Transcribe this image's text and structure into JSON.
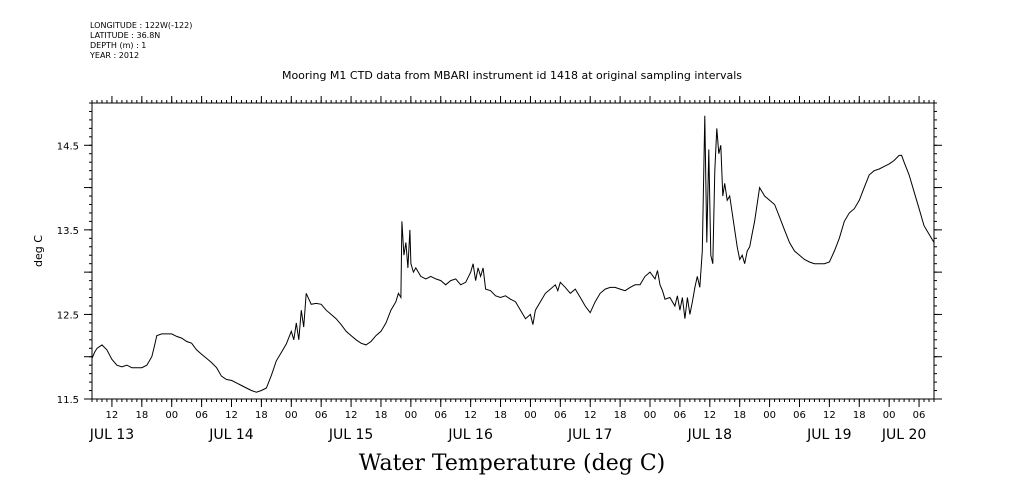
{
  "meta_lines": [
    "LONGITUDE : 122W(-122)",
    "LATITUDE : 36.8N",
    "DEPTH (m) : 1",
    "YEAR : 2012"
  ],
  "chart_data": {
    "type": "line",
    "title": "Mooring M1 CTD data from MBARI instrument id 1418 at original sampling intervals",
    "xlabel": "Water Temperature (deg C)",
    "ylabel": "deg C",
    "x_units": "hours since 2012-07-13 00:00",
    "xlim": [
      8,
      177
    ],
    "ylim": [
      11.5,
      15.0
    ],
    "y_ticks": [
      {
        "value": 11.5,
        "label": "11.5"
      },
      {
        "value": 12.0,
        "label": ""
      },
      {
        "value": 12.5,
        "label": "12.5"
      },
      {
        "value": 13.0,
        "label": ""
      },
      {
        "value": 13.5,
        "label": "13.5"
      },
      {
        "value": 14.0,
        "label": ""
      },
      {
        "value": 14.5,
        "label": "14.5"
      }
    ],
    "hour_ticks": [
      {
        "t": 12,
        "label": "12"
      },
      {
        "t": 18,
        "label": "18"
      },
      {
        "t": 24,
        "label": "00"
      },
      {
        "t": 30,
        "label": "06"
      },
      {
        "t": 36,
        "label": "12"
      },
      {
        "t": 42,
        "label": "18"
      },
      {
        "t": 48,
        "label": "00"
      },
      {
        "t": 54,
        "label": "06"
      },
      {
        "t": 60,
        "label": "12"
      },
      {
        "t": 66,
        "label": "18"
      },
      {
        "t": 72,
        "label": "00"
      },
      {
        "t": 78,
        "label": "06"
      },
      {
        "t": 84,
        "label": "12"
      },
      {
        "t": 90,
        "label": "18"
      },
      {
        "t": 96,
        "label": "00"
      },
      {
        "t": 102,
        "label": "06"
      },
      {
        "t": 108,
        "label": "12"
      },
      {
        "t": 114,
        "label": "18"
      },
      {
        "t": 120,
        "label": "00"
      },
      {
        "t": 126,
        "label": "06"
      },
      {
        "t": 132,
        "label": "12"
      },
      {
        "t": 138,
        "label": "18"
      },
      {
        "t": 144,
        "label": "00"
      },
      {
        "t": 150,
        "label": "06"
      },
      {
        "t": 156,
        "label": "12"
      },
      {
        "t": 162,
        "label": "18"
      },
      {
        "t": 168,
        "label": "00"
      },
      {
        "t": 174,
        "label": "06"
      }
    ],
    "day_labels": [
      {
        "t": 12,
        "label": "JUL 13"
      },
      {
        "t": 36,
        "label": "JUL 14"
      },
      {
        "t": 60,
        "label": "JUL 15"
      },
      {
        "t": 84,
        "label": "JUL 16"
      },
      {
        "t": 108,
        "label": "JUL 17"
      },
      {
        "t": 132,
        "label": "JUL 18"
      },
      {
        "t": 156,
        "label": "JUL 19"
      },
      {
        "t": 171,
        "label": "JUL 20"
      }
    ],
    "series": [
      {
        "points": [
          [
            8,
            11.98
          ],
          [
            8.5,
            12.05
          ],
          [
            9,
            12.1
          ],
          [
            10,
            12.14
          ],
          [
            11,
            12.08
          ],
          [
            12,
            11.97
          ],
          [
            13,
            11.9
          ],
          [
            14,
            11.88
          ],
          [
            15,
            11.9
          ],
          [
            16,
            11.87
          ],
          [
            17,
            11.87
          ],
          [
            18,
            11.87
          ],
          [
            19,
            11.9
          ],
          [
            20,
            12.0
          ],
          [
            20.5,
            12.12
          ],
          [
            21,
            12.25
          ],
          [
            22,
            12.27
          ],
          [
            23,
            12.27
          ],
          [
            24,
            12.27
          ],
          [
            25,
            12.24
          ],
          [
            26,
            12.22
          ],
          [
            27,
            12.18
          ],
          [
            28,
            12.16
          ],
          [
            29,
            12.08
          ],
          [
            30,
            12.03
          ],
          [
            31,
            11.98
          ],
          [
            32,
            11.93
          ],
          [
            33,
            11.87
          ],
          [
            34,
            11.77
          ],
          [
            35,
            11.73
          ],
          [
            36,
            11.72
          ],
          [
            37,
            11.69
          ],
          [
            38,
            11.66
          ],
          [
            39,
            11.63
          ],
          [
            40,
            11.6
          ],
          [
            41,
            11.58
          ],
          [
            42,
            11.6
          ],
          [
            43,
            11.63
          ],
          [
            44,
            11.78
          ],
          [
            45,
            11.95
          ],
          [
            46,
            12.05
          ],
          [
            47,
            12.15
          ],
          [
            48,
            12.3
          ],
          [
            48.5,
            12.2
          ],
          [
            49,
            12.4
          ],
          [
            49.5,
            12.2
          ],
          [
            50,
            12.55
          ],
          [
            50.5,
            12.35
          ],
          [
            51,
            12.75
          ],
          [
            52,
            12.62
          ],
          [
            53,
            12.63
          ],
          [
            54,
            12.62
          ],
          [
            55,
            12.55
          ],
          [
            56,
            12.5
          ],
          [
            57,
            12.45
          ],
          [
            58,
            12.38
          ],
          [
            59,
            12.3
          ],
          [
            60,
            12.25
          ],
          [
            61,
            12.2
          ],
          [
            62,
            12.16
          ],
          [
            63,
            12.14
          ],
          [
            64,
            12.18
          ],
          [
            65,
            12.25
          ],
          [
            66,
            12.3
          ],
          [
            67,
            12.4
          ],
          [
            68,
            12.55
          ],
          [
            69,
            12.65
          ],
          [
            69.5,
            12.75
          ],
          [
            70,
            12.7
          ],
          [
            70.2,
            13.6
          ],
          [
            70.6,
            13.2
          ],
          [
            71,
            13.35
          ],
          [
            71.4,
            13.05
          ],
          [
            71.8,
            13.5
          ],
          [
            72,
            13.1
          ],
          [
            72.5,
            13.0
          ],
          [
            73,
            13.05
          ],
          [
            74,
            12.95
          ],
          [
            75,
            12.92
          ],
          [
            76,
            12.95
          ],
          [
            77,
            12.92
          ],
          [
            78,
            12.9
          ],
          [
            79,
            12.85
          ],
          [
            80,
            12.9
          ],
          [
            81,
            12.92
          ],
          [
            82,
            12.85
          ],
          [
            83,
            12.88
          ],
          [
            84,
            13.0
          ],
          [
            84.5,
            13.1
          ],
          [
            85,
            12.9
          ],
          [
            85.5,
            13.05
          ],
          [
            86,
            12.95
          ],
          [
            86.5,
            13.05
          ],
          [
            87,
            12.8
          ],
          [
            88,
            12.78
          ],
          [
            89,
            12.72
          ],
          [
            90,
            12.7
          ],
          [
            91,
            12.72
          ],
          [
            92,
            12.68
          ],
          [
            93,
            12.65
          ],
          [
            94,
            12.55
          ],
          [
            95,
            12.45
          ],
          [
            96,
            12.5
          ],
          [
            96.5,
            12.38
          ],
          [
            97,
            12.55
          ],
          [
            98,
            12.65
          ],
          [
            99,
            12.75
          ],
          [
            100,
            12.8
          ],
          [
            101,
            12.85
          ],
          [
            101.5,
            12.78
          ],
          [
            102,
            12.88
          ],
          [
            103,
            12.82
          ],
          [
            104,
            12.75
          ],
          [
            105,
            12.8
          ],
          [
            106,
            12.7
          ],
          [
            107,
            12.6
          ],
          [
            108,
            12.52
          ],
          [
            109,
            12.65
          ],
          [
            110,
            12.75
          ],
          [
            111,
            12.8
          ],
          [
            112,
            12.82
          ],
          [
            113,
            12.82
          ],
          [
            114,
            12.8
          ],
          [
            115,
            12.78
          ],
          [
            116,
            12.82
          ],
          [
            117,
            12.85
          ],
          [
            118,
            12.85
          ],
          [
            119,
            12.95
          ],
          [
            120,
            13.0
          ],
          [
            121,
            12.92
          ],
          [
            121.5,
            13.02
          ],
          [
            122,
            12.85
          ],
          [
            122.5,
            12.78
          ],
          [
            123,
            12.68
          ],
          [
            124,
            12.7
          ],
          [
            125,
            12.6
          ],
          [
            125.5,
            12.72
          ],
          [
            126,
            12.55
          ],
          [
            126.5,
            12.7
          ],
          [
            127,
            12.45
          ],
          [
            127.5,
            12.7
          ],
          [
            128,
            12.5
          ],
          [
            128.5,
            12.65
          ],
          [
            129,
            12.82
          ],
          [
            129.5,
            12.95
          ],
          [
            130,
            12.82
          ],
          [
            130.5,
            13.25
          ],
          [
            131,
            14.85
          ],
          [
            131.4,
            13.35
          ],
          [
            131.8,
            14.45
          ],
          [
            132.2,
            13.2
          ],
          [
            132.6,
            13.1
          ],
          [
            133,
            14.2
          ],
          [
            133.4,
            14.7
          ],
          [
            133.8,
            14.4
          ],
          [
            134.2,
            14.5
          ],
          [
            134.6,
            13.9
          ],
          [
            135,
            14.05
          ],
          [
            135.5,
            13.85
          ],
          [
            136,
            13.9
          ],
          [
            136.5,
            13.7
          ],
          [
            137,
            13.5
          ],
          [
            137.5,
            13.3
          ],
          [
            138,
            13.15
          ],
          [
            138.5,
            13.2
          ],
          [
            139,
            13.1
          ],
          [
            139.5,
            13.25
          ],
          [
            140,
            13.3
          ],
          [
            140.5,
            13.45
          ],
          [
            141,
            13.6
          ],
          [
            141.5,
            13.8
          ],
          [
            142,
            14.0
          ],
          [
            143,
            13.9
          ],
          [
            144,
            13.85
          ],
          [
            145,
            13.8
          ],
          [
            146,
            13.65
          ],
          [
            147,
            13.5
          ],
          [
            148,
            13.35
          ],
          [
            149,
            13.25
          ],
          [
            150,
            13.2
          ],
          [
            151,
            13.15
          ],
          [
            152,
            13.12
          ],
          [
            153,
            13.1
          ],
          [
            154,
            13.1
          ],
          [
            155,
            13.1
          ],
          [
            156,
            13.12
          ],
          [
            157,
            13.25
          ],
          [
            158,
            13.4
          ],
          [
            159,
            13.6
          ],
          [
            160,
            13.7
          ],
          [
            161,
            13.75
          ],
          [
            162,
            13.85
          ],
          [
            163,
            14.0
          ],
          [
            164,
            14.15
          ],
          [
            165,
            14.2
          ],
          [
            166,
            14.22
          ],
          [
            167,
            14.25
          ],
          [
            168,
            14.28
          ],
          [
            169,
            14.32
          ],
          [
            170,
            14.38
          ],
          [
            170.5,
            14.38
          ],
          [
            171,
            14.3
          ],
          [
            172,
            14.15
          ],
          [
            173,
            13.95
          ],
          [
            174,
            13.75
          ],
          [
            175,
            13.55
          ],
          [
            176,
            13.45
          ],
          [
            177,
            13.35
          ]
        ]
      }
    ]
  }
}
